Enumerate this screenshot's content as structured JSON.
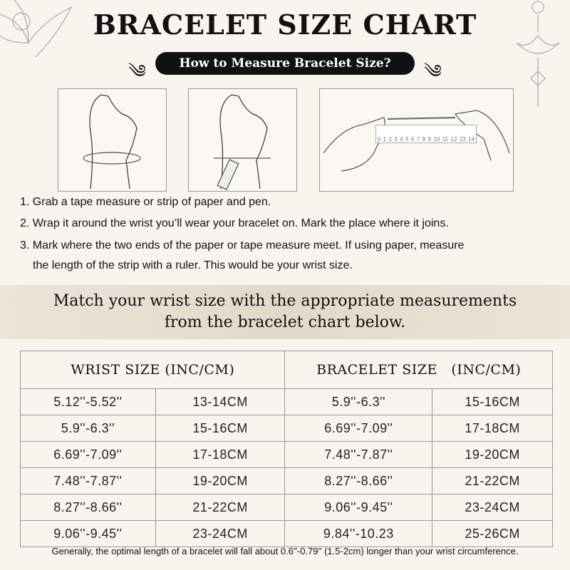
{
  "title": "BRACELET SIZE CHART",
  "subtitle": "How to Measure Bracelet Size?",
  "ruler_labels": [
    "0",
    "1",
    "2",
    "3",
    "4",
    "5",
    "6",
    "7",
    "8",
    "9",
    "10",
    "11",
    "12",
    "13",
    "14"
  ],
  "steps": [
    "1. Grab a tape measure or strip of paper and pen.",
    "2. Wrap it around the wrist you’ll wear your bracelet on. Mark the place where it joins.",
    "3. Mark where the two ends of the paper or tape measure meet. If using paper, measure",
    "the length of the strip with a ruler. This would be your wrist size."
  ],
  "band": {
    "line1": "Match your wrist size with the appropriate measurements",
    "line2": "from the bracelet chart below."
  },
  "table": {
    "headers": [
      "WRIST SIZE (INC/CM)",
      "BRACELET SIZE   (INC/CM)"
    ],
    "rows": [
      [
        "5.12''-5.52''",
        "13-14CM",
        "5.9''-6.3''",
        "15-16CM"
      ],
      [
        "5.9''-6.3''",
        "15-16CM",
        "6.69''-7.09''",
        "17-18CM"
      ],
      [
        "6.69''-7.09''",
        "17-18CM",
        "7.48''-7.87''",
        "19-20CM"
      ],
      [
        "7.48''-7.87''",
        "19-20CM",
        "8.27''-8.66''",
        "21-22CM"
      ],
      [
        "8.27''-8.66''",
        "21-22CM",
        "9.06''-9.45''",
        "23-24CM"
      ],
      [
        "9.06''-9.45''",
        "23-24CM",
        "9.84''-10.23",
        "25-26CM"
      ]
    ]
  },
  "footer": "Generally, the optimal length of a bracelet will fall about 0.6''-0.79'' (1.5-2cm) longer than your wrist circumference.",
  "colors": {
    "background": "#f8f5ef",
    "pill": "#111111",
    "band": "#e2d9c9",
    "border": "#999999"
  }
}
